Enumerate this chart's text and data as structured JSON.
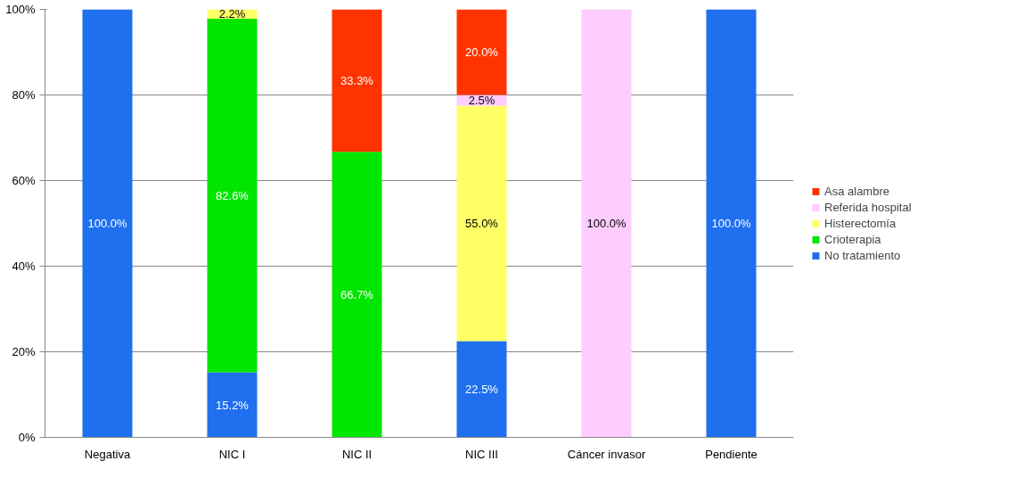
{
  "chart_data": {
    "type": "bar",
    "stacked": true,
    "categories": [
      "Negativa",
      "NIC I",
      "NIC II",
      "NIC III",
      "Cáncer invasor",
      "Pendiente"
    ],
    "series": [
      {
        "name": "No tratamiento",
        "color": "#1f6fef",
        "values": [
          100,
          15.2,
          null,
          22.5,
          null,
          100
        ],
        "value_labels": [
          "100.0%",
          "15.2%",
          null,
          "22.5%",
          null,
          "100.0%"
        ]
      },
      {
        "name": "Crioterapia",
        "color": "#00e600",
        "values": [
          null,
          82.6,
          66.7,
          null,
          null,
          null
        ],
        "value_labels": [
          null,
          "82.6%",
          "66.7%",
          null,
          null,
          null
        ]
      },
      {
        "name": "Histerectomía",
        "color": "#ffff66",
        "values": [
          null,
          2.2,
          null,
          55.0,
          null,
          null
        ],
        "value_labels": [
          null,
          "2.2%",
          null,
          "55.0%",
          null,
          null
        ]
      },
      {
        "name": "Referida hospital",
        "color": "#ffccff",
        "values": [
          null,
          null,
          null,
          2.5,
          100,
          null
        ],
        "value_labels": [
          null,
          null,
          null,
          "2.5%",
          "100.0%",
          null
        ]
      },
      {
        "name": "Asa alambre",
        "color": "#ff3300",
        "values": [
          null,
          null,
          33.3,
          20.0,
          null,
          null
        ],
        "value_labels": [
          null,
          null,
          "33.3%",
          "20.0%",
          null,
          null
        ]
      }
    ],
    "ylim": [
      0,
      100
    ],
    "yticks": [
      {
        "value": 0,
        "label": "0%"
      },
      {
        "value": 20,
        "label": "20%"
      },
      {
        "value": 40,
        "label": "40%"
      },
      {
        "value": 60,
        "label": "60%"
      },
      {
        "value": 80,
        "label": "80%"
      },
      {
        "value": 100,
        "label": "100%"
      }
    ],
    "grid": "y",
    "legend": "right"
  }
}
